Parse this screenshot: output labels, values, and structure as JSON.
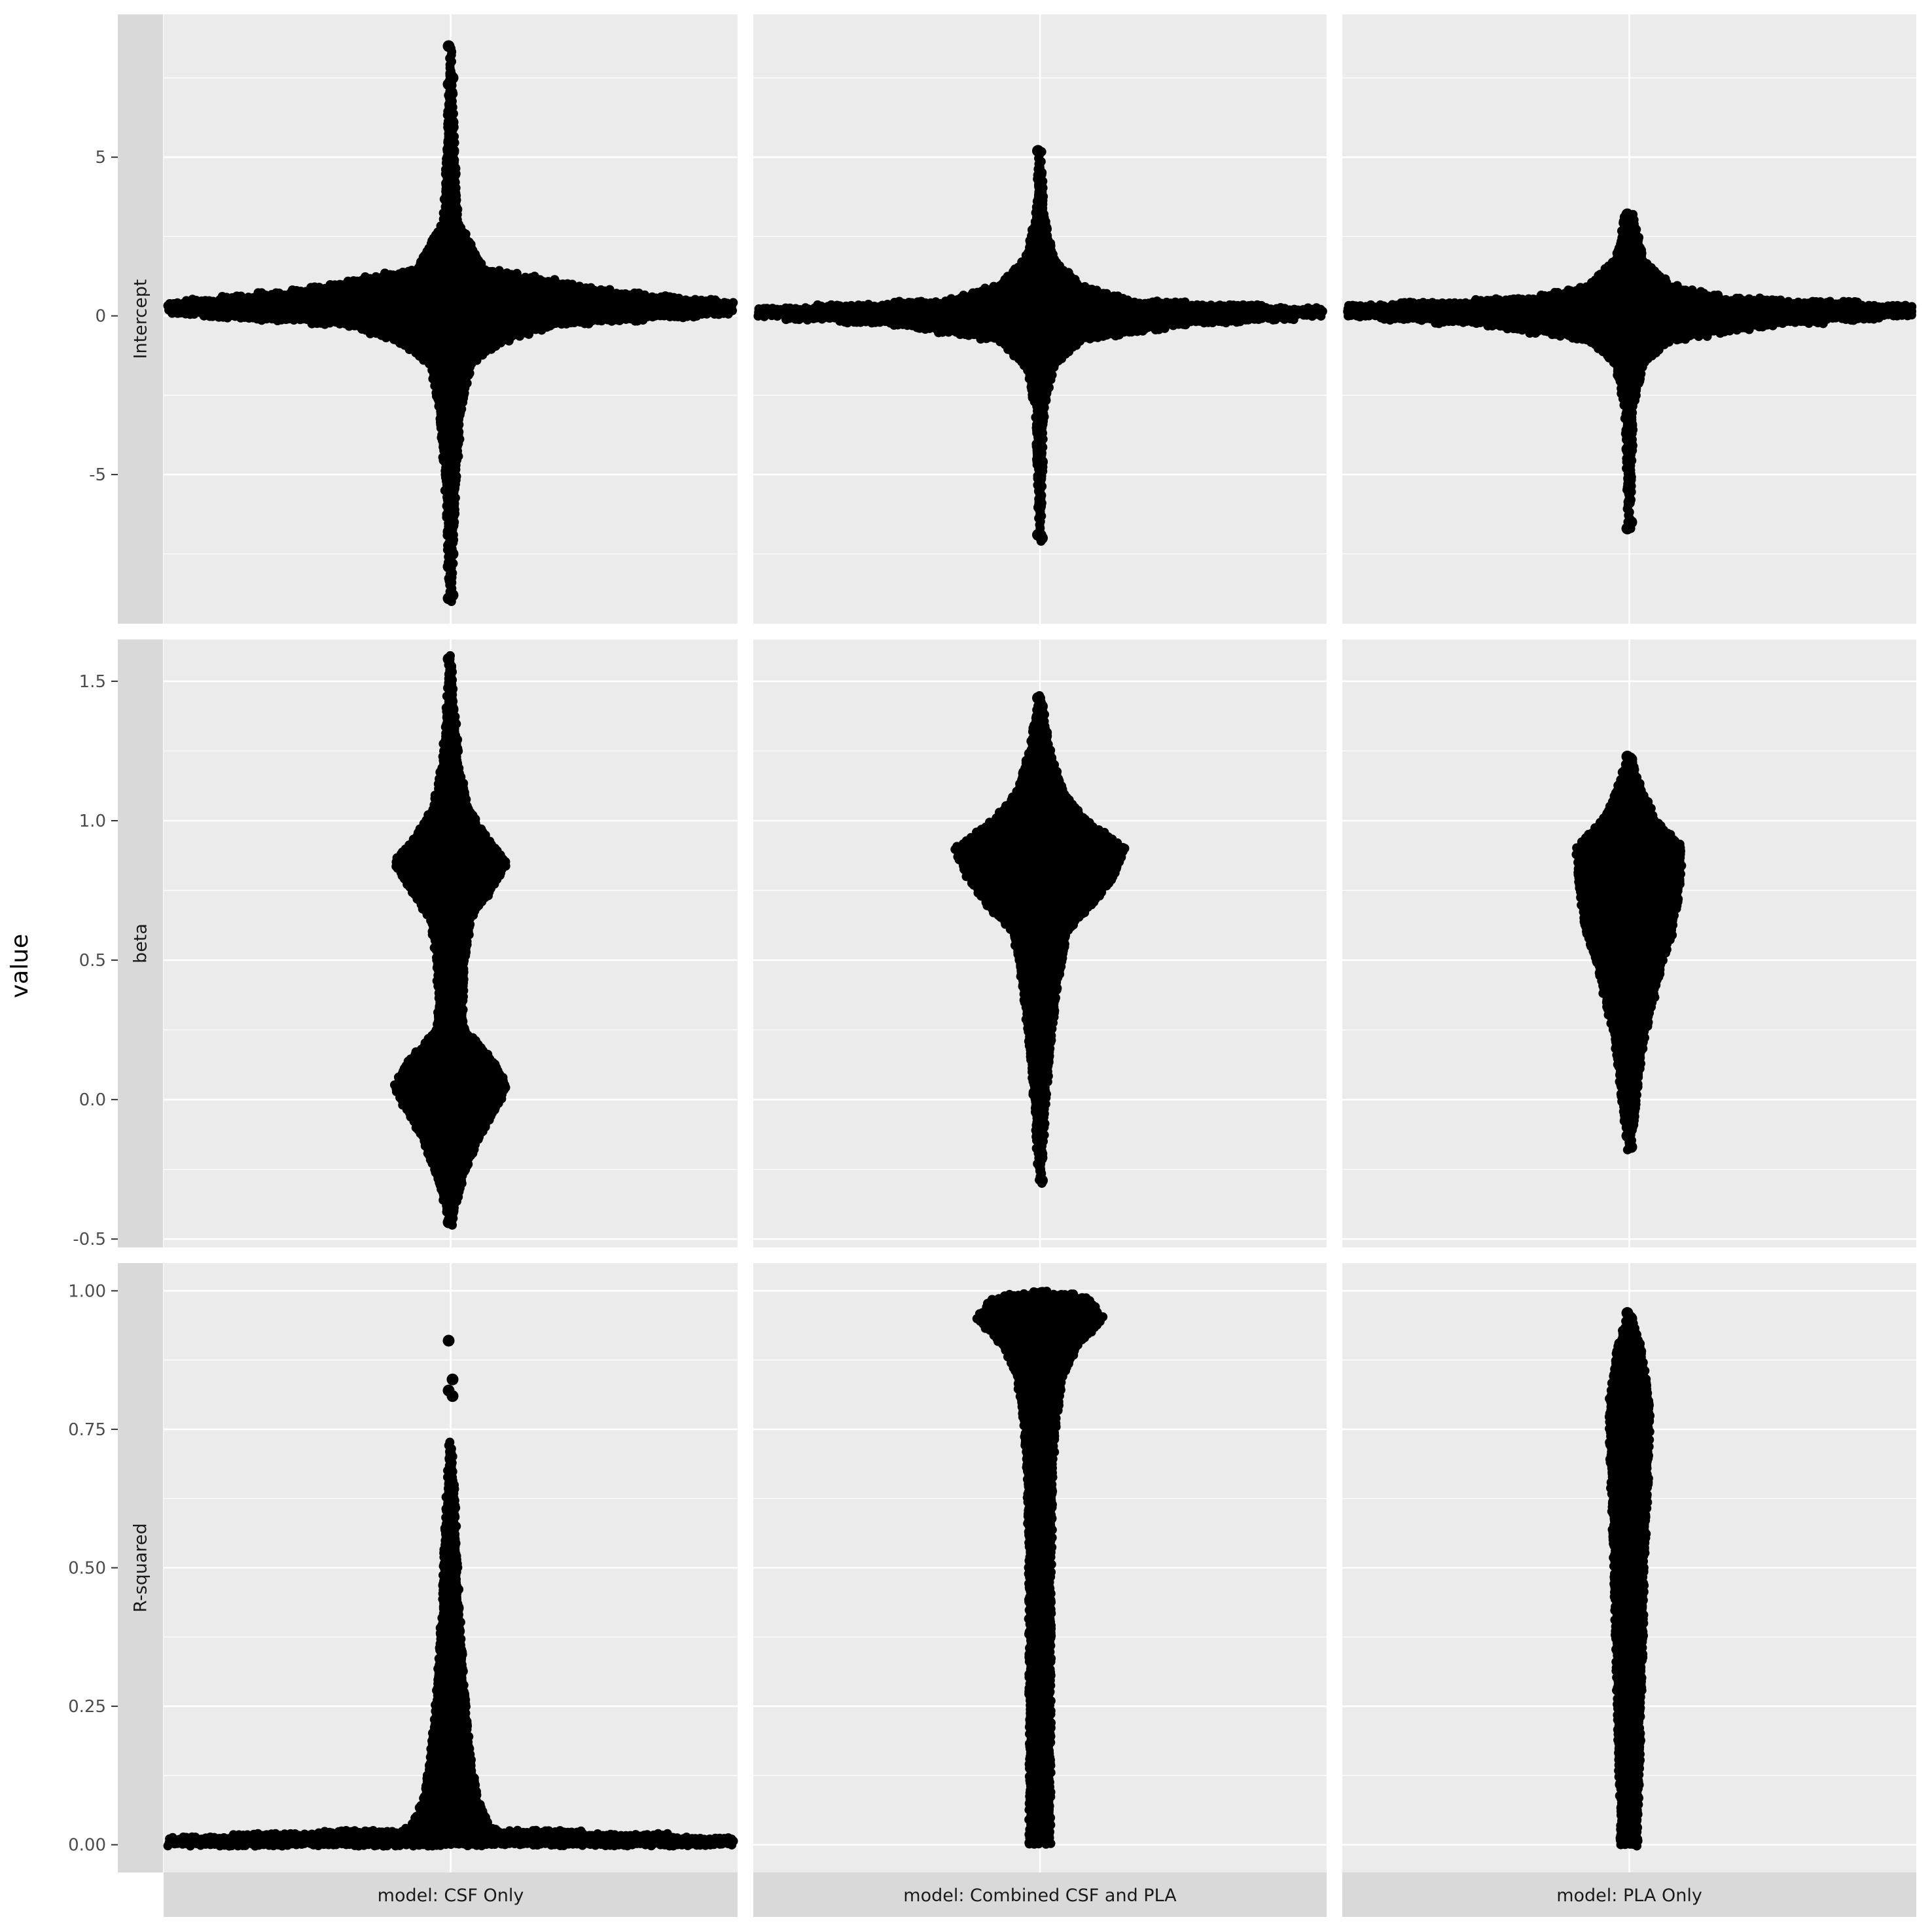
{
  "chart_data": {
    "type": "scatter",
    "subtype": "beeswarm",
    "facet_grid": true,
    "ylabel": "value",
    "xlabel": "",
    "columns": [
      "model: CSF Only",
      "model: Combined CSF and PLA",
      "model: PLA Only"
    ],
    "rows": [
      {
        "label": "Intercept",
        "ylim": [
          -9.7,
          9.5
        ],
        "yticks": [
          -5,
          0,
          5
        ],
        "yticklabels": [
          "-5",
          "0",
          "5"
        ]
      },
      {
        "label": "beta",
        "ylim": [
          -0.53,
          1.65
        ],
        "yticks": [
          -0.5,
          0.0,
          0.5,
          1.0,
          1.5
        ],
        "yticklabels": [
          "-0.5",
          "0.0",
          "0.5",
          "1.0",
          "1.5"
        ]
      },
      {
        "label": "R-squared",
        "ylim": [
          -0.05,
          1.05
        ],
        "yticks": [
          0.0,
          0.25,
          0.5,
          0.75,
          1.0
        ],
        "yticklabels": [
          "0.00",
          "0.25",
          "0.50",
          "0.75",
          "1.00"
        ]
      }
    ],
    "panels": [
      {
        "row": "Intercept",
        "column": "model: CSF Only",
        "profile": [
          [
            -9.0,
            0
          ],
          [
            -6,
            0.5
          ],
          [
            -3,
            1.5
          ],
          [
            -1.5,
            3
          ],
          [
            -0.8,
            8
          ],
          [
            -0.3,
            16
          ],
          [
            0,
            40
          ],
          [
            0.3,
            50
          ],
          [
            0.8,
            24
          ],
          [
            1.5,
            5
          ],
          [
            3,
            1
          ],
          [
            5,
            0.5
          ],
          [
            8.5,
            0
          ]
        ],
        "outliers": [
          8.5,
          7.5,
          7.3,
          6.1,
          5.2,
          4.8,
          4.3,
          4.1,
          3.3,
          -6.6,
          -6.8,
          -7.5,
          -7.9,
          -8.8,
          -8.9
        ]
      },
      {
        "row": "Intercept",
        "column": "model: Combined CSF and PLA",
        "profile": [
          [
            -7.1,
            0
          ],
          [
            -3,
            0.5
          ],
          [
            -1.6,
            2
          ],
          [
            -0.8,
            6
          ],
          [
            -0.3,
            22
          ],
          [
            0,
            46
          ],
          [
            0.2,
            48
          ],
          [
            0.5,
            14
          ],
          [
            1.0,
            6
          ],
          [
            1.8,
            2
          ],
          [
            3.2,
            0.5
          ],
          [
            5.2,
            0
          ]
        ],
        "outliers": [
          5.2,
          3.2,
          3.1,
          2.5,
          -2.1,
          -3.3,
          -3.6,
          -4.6,
          -6.9,
          -7.0
        ]
      },
      {
        "row": "Intercept",
        "column": "model: PLA Only",
        "profile": [
          [
            -6.7,
            0
          ],
          [
            -3,
            0.5
          ],
          [
            -1.5,
            2
          ],
          [
            -0.8,
            6
          ],
          [
            -0.3,
            22
          ],
          [
            0,
            46
          ],
          [
            0.3,
            48
          ],
          [
            0.6,
            14
          ],
          [
            1.0,
            6
          ],
          [
            1.8,
            2
          ],
          [
            3.2,
            0.5
          ],
          [
            3.3,
            0
          ]
        ],
        "outliers": [
          3.2,
          3.0,
          2.7,
          2.4,
          2.0,
          -2.5,
          -3.7,
          -4.1,
          -4.2,
          -6.5,
          -6.7
        ]
      },
      {
        "row": "beta",
        "column": "model: CSF Only",
        "profile": [
          [
            -0.45,
            0
          ],
          [
            -0.3,
            1.5
          ],
          [
            -0.15,
            4
          ],
          [
            0.0,
            7.5
          ],
          [
            0.05,
            8.5
          ],
          [
            0.15,
            6
          ],
          [
            0.25,
            2
          ],
          [
            0.35,
            1.8
          ],
          [
            0.5,
            2
          ],
          [
            0.65,
            3
          ],
          [
            0.75,
            6
          ],
          [
            0.85,
            8.5
          ],
          [
            0.95,
            5
          ],
          [
            1.05,
            2.5
          ],
          [
            1.2,
            1.2
          ],
          [
            1.4,
            0.5
          ],
          [
            1.6,
            0
          ]
        ],
        "outliers": [
          1.58,
          1.4,
          1.38,
          1.33,
          1.26,
          -0.4,
          -0.44
        ]
      },
      {
        "row": "beta",
        "column": "model: Combined CSF and PLA",
        "profile": [
          [
            -0.3,
            0
          ],
          [
            0,
            0.8
          ],
          [
            0.2,
            1.5
          ],
          [
            0.4,
            2.5
          ],
          [
            0.6,
            4
          ],
          [
            0.7,
            8
          ],
          [
            0.8,
            11
          ],
          [
            0.9,
            13
          ],
          [
            1.0,
            7
          ],
          [
            1.1,
            3.5
          ],
          [
            1.25,
            1.5
          ],
          [
            1.45,
            0
          ]
        ],
        "outliers": [
          1.44,
          1.41,
          -0.12,
          -0.29
        ]
      },
      {
        "row": "beta",
        "column": "model: PLA Only",
        "profile": [
          [
            -0.18,
            0
          ],
          [
            0,
            1
          ],
          [
            0.2,
            2
          ],
          [
            0.35,
            3.5
          ],
          [
            0.5,
            5
          ],
          [
            0.6,
            6.5
          ],
          [
            0.75,
            7.5
          ],
          [
            0.9,
            8
          ],
          [
            1.0,
            4
          ],
          [
            1.1,
            2
          ],
          [
            1.23,
            0
          ]
        ],
        "outliers": [
          1.23,
          1.22,
          -0.13,
          -0.17
        ]
      },
      {
        "row": "R-squared",
        "column": "model: CSF Only",
        "profile": [
          [
            0.0,
            90
          ],
          [
            0.01,
            50
          ],
          [
            0.03,
            6
          ],
          [
            0.08,
            4
          ],
          [
            0.15,
            3
          ],
          [
            0.25,
            2.2
          ],
          [
            0.35,
            1.6
          ],
          [
            0.45,
            1.1
          ],
          [
            0.55,
            0.8
          ],
          [
            0.65,
            0.4
          ],
          [
            0.73,
            0
          ]
        ],
        "outliers": [
          0.91,
          0.84,
          0.82,
          0.81
        ]
      },
      {
        "row": "R-squared",
        "column": "model: Combined CSF and PLA",
        "profile": [
          [
            0.0,
            1.5
          ],
          [
            0.1,
            1.5
          ],
          [
            0.3,
            1.5
          ],
          [
            0.5,
            1.6
          ],
          [
            0.65,
            1.8
          ],
          [
            0.75,
            2.2
          ],
          [
            0.85,
            3.5
          ],
          [
            0.9,
            5.5
          ],
          [
            0.95,
            9.5
          ],
          [
            0.99,
            7
          ],
          [
            1.0,
            0
          ]
        ],
        "outliers": []
      },
      {
        "row": "R-squared",
        "column": "model: PLA Only",
        "profile": [
          [
            0.0,
            1.2
          ],
          [
            0.1,
            1.4
          ],
          [
            0.2,
            1.6
          ],
          [
            0.3,
            1.8
          ],
          [
            0.4,
            2.0
          ],
          [
            0.5,
            2.2
          ],
          [
            0.6,
            2.5
          ],
          [
            0.7,
            2.9
          ],
          [
            0.8,
            3.0
          ],
          [
            0.9,
            1.6
          ],
          [
            0.96,
            0
          ]
        ],
        "outliers": [
          0.96,
          0.95
        ]
      }
    ],
    "colors": {
      "panel_bg": "#ebebeb",
      "grid": "#ffffff",
      "strip_bg": "#d9d9d9",
      "point": "#000000"
    },
    "grid": true,
    "legend": "none"
  }
}
